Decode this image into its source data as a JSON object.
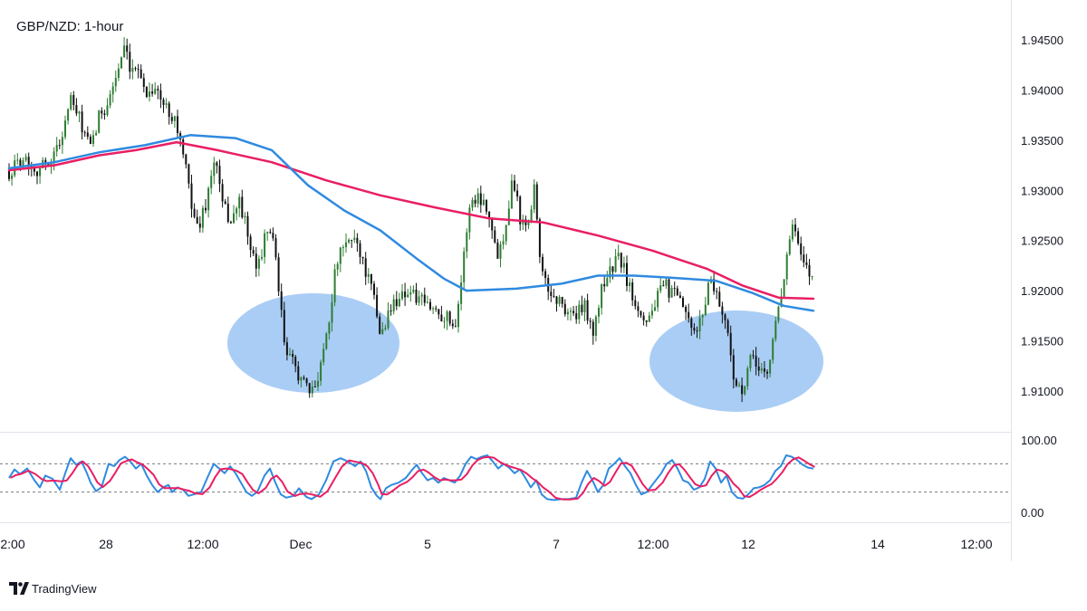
{
  "chart_data": {
    "type": "candlestick",
    "title": "GBP/NZD: 1-hour",
    "price_axis": {
      "ylim": [
        1.9055,
        1.9475
      ],
      "ticks": [
        "1.94500",
        "1.94000",
        "1.93500",
        "1.93000",
        "1.92500",
        "1.92000",
        "1.91500",
        "1.91000"
      ],
      "tick_values": [
        1.945,
        1.94,
        1.935,
        1.93,
        1.925,
        1.92,
        1.915,
        1.91
      ]
    },
    "time_axis": {
      "ticks": [
        "2:00",
        "28",
        "12:00",
        "Dec",
        "5",
        "7",
        "12:00",
        "12",
        "14",
        "12:00"
      ]
    },
    "price_path": [
      [
        0,
        1.9325
      ],
      [
        12,
        1.9318
      ],
      [
        25,
        1.9335
      ],
      [
        40,
        1.932
      ],
      [
        55,
        1.933
      ],
      [
        65,
        1.9345
      ],
      [
        78,
        1.939
      ],
      [
        88,
        1.937
      ],
      [
        100,
        1.934
      ],
      [
        110,
        1.9375
      ],
      [
        120,
        1.939
      ],
      [
        130,
        1.942
      ],
      [
        138,
        1.944
      ],
      [
        145,
        1.941
      ],
      [
        152,
        1.943
      ],
      [
        160,
        1.9395
      ],
      [
        170,
        1.9405
      ],
      [
        180,
        1.9385
      ],
      [
        192,
        1.9375
      ],
      [
        200,
        1.9345
      ],
      [
        208,
        1.9305
      ],
      [
        218,
        1.926
      ],
      [
        228,
        1.929
      ],
      [
        238,
        1.9335
      ],
      [
        245,
        1.9285
      ],
      [
        255,
        1.927
      ],
      [
        265,
        1.929
      ],
      [
        272,
        1.926
      ],
      [
        282,
        1.922
      ],
      [
        292,
        1.925
      ],
      [
        300,
        1.9265
      ],
      [
        308,
        1.9195
      ],
      [
        316,
        1.9135
      ],
      [
        326,
        1.9125
      ],
      [
        336,
        1.9105
      ],
      [
        344,
        1.9095
      ],
      [
        352,
        1.912
      ],
      [
        362,
        1.9165
      ],
      [
        372,
        1.923
      ],
      [
        382,
        1.9245
      ],
      [
        392,
        1.9255
      ],
      [
        402,
        1.9225
      ],
      [
        412,
        1.9195
      ],
      [
        420,
        1.9155
      ],
      [
        430,
        1.918
      ],
      [
        440,
        1.9195
      ],
      [
        452,
        1.92
      ],
      [
        462,
        1.919
      ],
      [
        472,
        1.9185
      ],
      [
        482,
        1.918
      ],
      [
        492,
        1.9175
      ],
      [
        502,
        1.9165
      ],
      [
        510,
        1.9215
      ],
      [
        518,
        1.9285
      ],
      [
        528,
        1.9295
      ],
      [
        538,
        1.9285
      ],
      [
        548,
        1.9235
      ],
      [
        556,
        1.9255
      ],
      [
        566,
        1.9315
      ],
      [
        576,
        1.9265
      ],
      [
        584,
        1.9275
      ],
      [
        590,
        1.9305
      ],
      [
        598,
        1.9215
      ],
      [
        606,
        1.92
      ],
      [
        616,
        1.919
      ],
      [
        626,
        1.918
      ],
      [
        636,
        1.9175
      ],
      [
        646,
        1.9185
      ],
      [
        656,
        1.9155
      ],
      [
        664,
        1.9205
      ],
      [
        674,
        1.922
      ],
      [
        684,
        1.9235
      ],
      [
        694,
        1.9205
      ],
      [
        704,
        1.9185
      ],
      [
        714,
        1.917
      ],
      [
        724,
        1.919
      ],
      [
        734,
        1.9205
      ],
      [
        744,
        1.9195
      ],
      [
        754,
        1.9185
      ],
      [
        764,
        1.9155
      ],
      [
        774,
        1.917
      ],
      [
        784,
        1.9215
      ],
      [
        794,
        1.919
      ],
      [
        804,
        1.9155
      ],
      [
        812,
        1.9105
      ],
      [
        820,
        1.9095
      ],
      [
        828,
        1.913
      ],
      [
        838,
        1.9125
      ],
      [
        848,
        1.9115
      ],
      [
        856,
        1.917
      ],
      [
        862,
        1.9195
      ],
      [
        868,
        1.923
      ],
      [
        874,
        1.9265
      ],
      [
        880,
        1.925
      ],
      [
        886,
        1.9225
      ],
      [
        892,
        1.922
      ],
      [
        898,
        1.921
      ]
    ],
    "series": [
      {
        "type": "line",
        "color": "#e91e63",
        "points": [
          [
            10,
            1.932
          ],
          [
            60,
            1.9325
          ],
          [
            110,
            1.9335
          ],
          [
            150,
            1.934
          ],
          [
            195,
            1.9348
          ],
          [
            240,
            1.934
          ],
          [
            300,
            1.9328
          ],
          [
            360,
            1.931
          ],
          [
            420,
            1.9295
          ],
          [
            480,
            1.9283
          ],
          [
            540,
            1.9272
          ],
          [
            600,
            1.9268
          ],
          [
            660,
            1.9255
          ],
          [
            720,
            1.924
          ],
          [
            780,
            1.9222
          ],
          [
            820,
            1.9205
          ],
          [
            860,
            1.9193
          ],
          [
            898,
            1.9192
          ]
        ]
      },
      {
        "type": "line",
        "color": "#2f8ae0",
        "points": [
          [
            10,
            1.9322
          ],
          [
            60,
            1.9328
          ],
          [
            110,
            1.9338
          ],
          [
            160,
            1.9345
          ],
          [
            210,
            1.9355
          ],
          [
            260,
            1.9352
          ],
          [
            300,
            1.934
          ],
          [
            340,
            1.9305
          ],
          [
            380,
            1.928
          ],
          [
            420,
            1.926
          ],
          [
            460,
            1.9232
          ],
          [
            490,
            1.9212
          ],
          [
            515,
            1.92
          ],
          [
            570,
            1.9202
          ],
          [
            620,
            1.9207
          ],
          [
            660,
            1.9215
          ],
          [
            700,
            1.9215
          ],
          [
            740,
            1.9213
          ],
          [
            790,
            1.921
          ],
          [
            830,
            1.9198
          ],
          [
            865,
            1.9185
          ],
          [
            898,
            1.918
          ]
        ]
      }
    ],
    "highlights": [
      {
        "cx": 346,
        "cy": 379,
        "rx": 95,
        "ry": 55,
        "color": "#aacdf5"
      },
      {
        "cx": 813,
        "cy": 399,
        "rx": 96,
        "ry": 56,
        "color": "#aacdf5"
      }
    ],
    "oscillator": {
      "ylim": [
        0,
        100
      ],
      "ticks": [
        "100.00",
        "0.00"
      ],
      "tick_values": [
        100,
        0
      ],
      "levels": [
        80,
        20
      ],
      "k_color": "#2f8ae0",
      "d_color": "#e91e63",
      "k_path": [
        [
          10,
          50
        ],
        [
          16,
          68
        ],
        [
          22,
          58
        ],
        [
          30,
          70
        ],
        [
          38,
          45
        ],
        [
          44,
          30
        ],
        [
          50,
          55
        ],
        [
          58,
          48
        ],
        [
          66,
          25
        ],
        [
          72,
          60
        ],
        [
          78,
          92
        ],
        [
          84,
          78
        ],
        [
          90,
          85
        ],
        [
          96,
          60
        ],
        [
          100,
          40
        ],
        [
          106,
          22
        ],
        [
          112,
          30
        ],
        [
          120,
          80
        ],
        [
          126,
          75
        ],
        [
          132,
          88
        ],
        [
          138,
          95
        ],
        [
          144,
          85
        ],
        [
          150,
          70
        ],
        [
          156,
          80
        ],
        [
          162,
          55
        ],
        [
          168,
          35
        ],
        [
          174,
          20
        ],
        [
          180,
          30
        ],
        [
          186,
          35
        ],
        [
          190,
          20
        ],
        [
          196,
          30
        ],
        [
          202,
          25
        ],
        [
          208,
          12
        ],
        [
          214,
          15
        ],
        [
          222,
          20
        ],
        [
          230,
          55
        ],
        [
          236,
          80
        ],
        [
          242,
          70
        ],
        [
          248,
          60
        ],
        [
          254,
          75
        ],
        [
          260,
          60
        ],
        [
          266,
          40
        ],
        [
          272,
          20
        ],
        [
          278,
          12
        ],
        [
          284,
          20
        ],
        [
          292,
          55
        ],
        [
          298,
          70
        ],
        [
          304,
          40
        ],
        [
          310,
          15
        ],
        [
          316,
          8
        ],
        [
          324,
          12
        ],
        [
          330,
          28
        ],
        [
          338,
          10
        ],
        [
          344,
          5
        ],
        [
          352,
          15
        ],
        [
          360,
          45
        ],
        [
          368,
          85
        ],
        [
          376,
          92
        ],
        [
          384,
          85
        ],
        [
          392,
          75
        ],
        [
          398,
          85
        ],
        [
          404,
          65
        ],
        [
          410,
          30
        ],
        [
          416,
          12
        ],
        [
          420,
          5
        ],
        [
          426,
          28
        ],
        [
          432,
          35
        ],
        [
          440,
          40
        ],
        [
          448,
          50
        ],
        [
          454,
          65
        ],
        [
          460,
          78
        ],
        [
          466,
          60
        ],
        [
          472,
          45
        ],
        [
          478,
          50
        ],
        [
          484,
          40
        ],
        [
          490,
          50
        ],
        [
          496,
          45
        ],
        [
          502,
          40
        ],
        [
          508,
          55
        ],
        [
          514,
          80
        ],
        [
          520,
          95
        ],
        [
          526,
          90
        ],
        [
          532,
          95
        ],
        [
          538,
          98
        ],
        [
          544,
          85
        ],
        [
          550,
          70
        ],
        [
          556,
          80
        ],
        [
          562,
          72
        ],
        [
          568,
          60
        ],
        [
          574,
          68
        ],
        [
          580,
          50
        ],
        [
          586,
          30
        ],
        [
          592,
          45
        ],
        [
          598,
          15
        ],
        [
          604,
          5
        ],
        [
          612,
          3
        ],
        [
          620,
          5
        ],
        [
          628,
          5
        ],
        [
          636,
          8
        ],
        [
          642,
          40
        ],
        [
          648,
          65
        ],
        [
          654,
          45
        ],
        [
          660,
          20
        ],
        [
          666,
          35
        ],
        [
          672,
          70
        ],
        [
          678,
          80
        ],
        [
          684,
          92
        ],
        [
          690,
          75
        ],
        [
          696,
          60
        ],
        [
          702,
          35
        ],
        [
          708,
          15
        ],
        [
          714,
          20
        ],
        [
          722,
          40
        ],
        [
          730,
          60
        ],
        [
          736,
          80
        ],
        [
          742,
          88
        ],
        [
          748,
          70
        ],
        [
          754,
          45
        ],
        [
          760,
          40
        ],
        [
          766,
          25
        ],
        [
          772,
          30
        ],
        [
          778,
          48
        ],
        [
          784,
          85
        ],
        [
          790,
          70
        ],
        [
          796,
          40
        ],
        [
          802,
          55
        ],
        [
          808,
          20
        ],
        [
          814,
          8
        ],
        [
          820,
          6
        ],
        [
          826,
          15
        ],
        [
          832,
          28
        ],
        [
          838,
          30
        ],
        [
          844,
          35
        ],
        [
          850,
          45
        ],
        [
          856,
          65
        ],
        [
          862,
          75
        ],
        [
          868,
          98
        ],
        [
          874,
          95
        ],
        [
          880,
          88
        ],
        [
          886,
          78
        ],
        [
          892,
          72
        ],
        [
          898,
          70
        ]
      ]
    }
  },
  "brand": {
    "text": "TradingView"
  }
}
